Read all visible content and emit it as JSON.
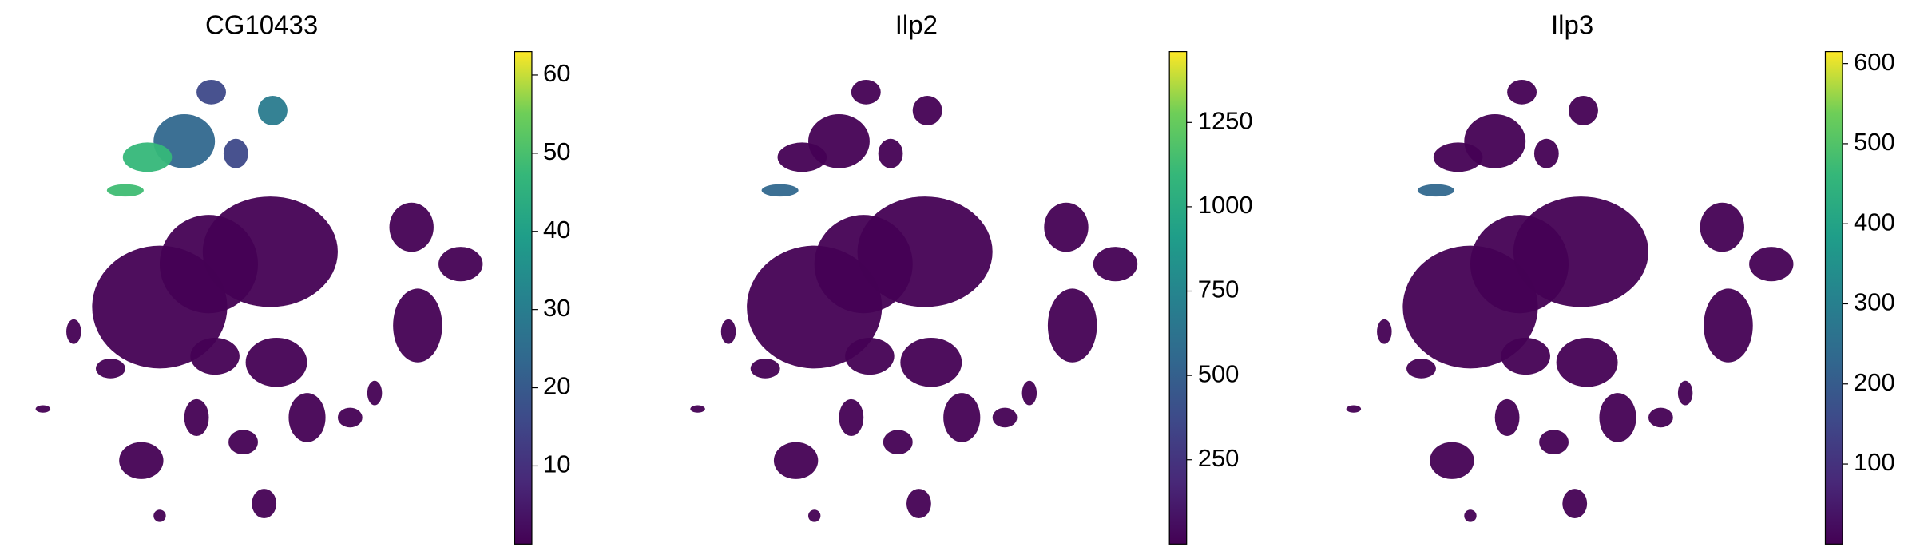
{
  "chart_data": [
    {
      "type": "scatter",
      "title": "CG10433",
      "colormap": "viridis",
      "clim": [
        0,
        63
      ],
      "cticks": [
        10,
        20,
        30,
        40,
        50,
        60
      ]
    },
    {
      "type": "scatter",
      "title": "Ilp2",
      "colormap": "viridis",
      "clim": [
        0,
        1460
      ],
      "cticks": [
        250,
        500,
        750,
        1000,
        1250
      ]
    },
    {
      "type": "scatter",
      "title": "Ilp3",
      "colormap": "viridis",
      "clim": [
        0,
        615
      ],
      "cticks": [
        100,
        200,
        300,
        400,
        500,
        600
      ]
    }
  ]
}
